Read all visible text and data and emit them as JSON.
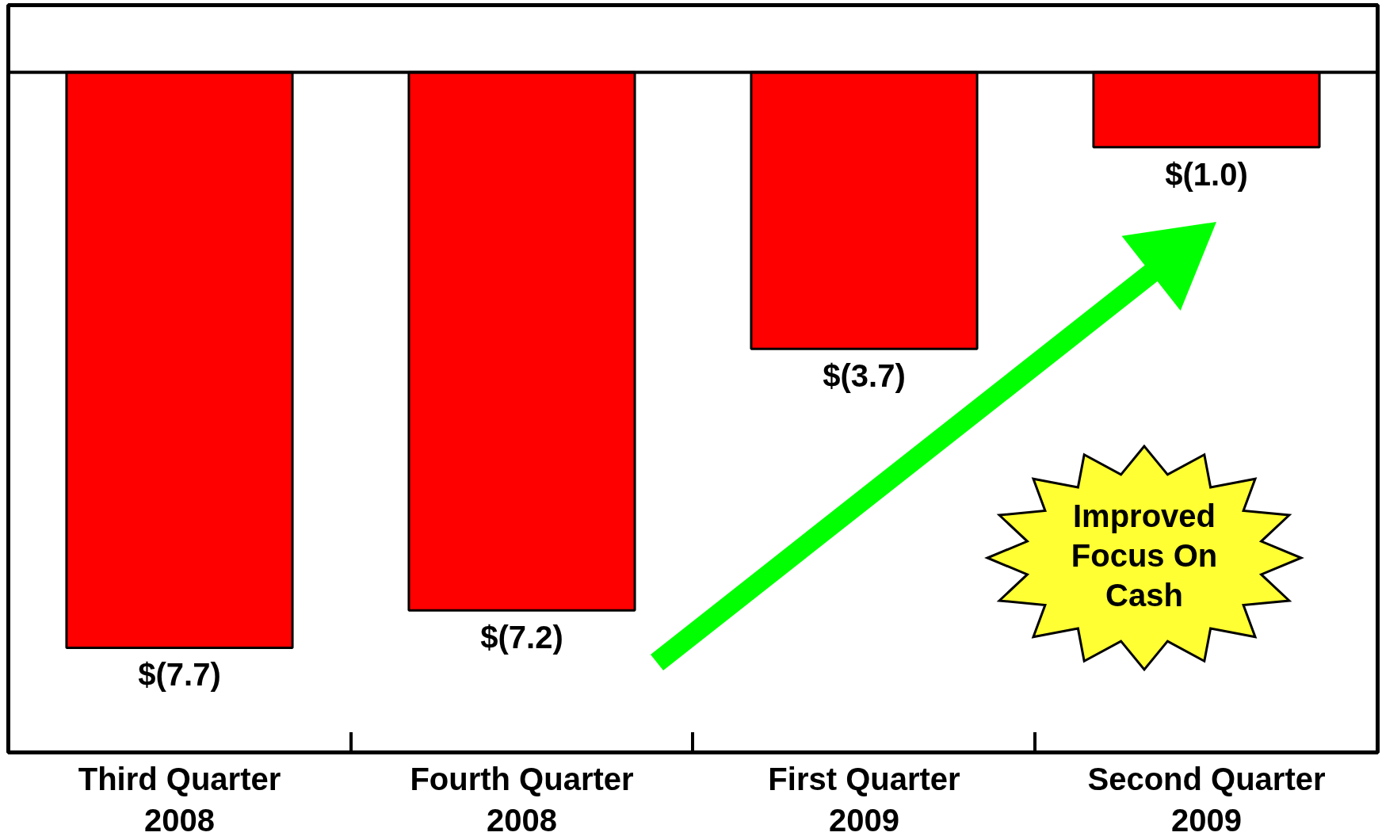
{
  "chart_data": {
    "type": "bar",
    "categories": [
      "Third Quarter\n2008",
      "Fourth Quarter\n2008",
      "First Quarter\n2009",
      "Second Quarter\n2009"
    ],
    "values": [
      -7.7,
      -7.2,
      -3.7,
      -1.0
    ],
    "value_labels": [
      "$(7.7)",
      "$(7.2)",
      "$(3.7)",
      "$(1.0)"
    ],
    "color": "#ff0000",
    "ylim": [
      -9.1,
      0.9
    ],
    "tick_labels": "x",
    "grid": false,
    "ref_lines": [
      {
        "axis": "y",
        "value": 0,
        "color": "#000000"
      }
    ],
    "annotations": [
      "Improved\nFocus On\nCash"
    ]
  }
}
